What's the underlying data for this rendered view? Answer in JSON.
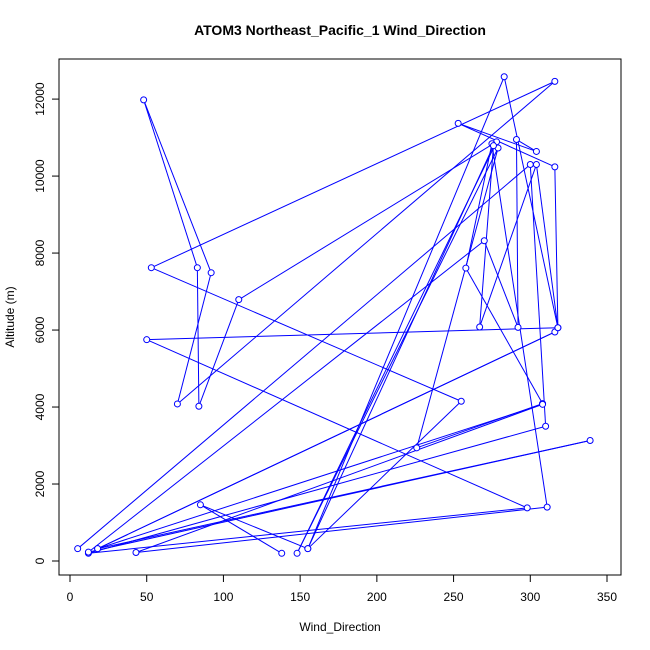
{
  "chart_data": {
    "type": "line",
    "title": "ATOM3 Northeast_Pacific_1 Wind_Direction",
    "xlabel": "Wind_Direction",
    "ylabel": "Altitude (m)",
    "xlim": [
      0,
      350
    ],
    "ylim": [
      0,
      12600
    ],
    "x_ticks": [
      0,
      50,
      100,
      150,
      200,
      250,
      300,
      350
    ],
    "y_ticks": [
      0,
      2000,
      4000,
      6000,
      8000,
      10000,
      12000
    ],
    "series_color": "#0000ff",
    "grid": false,
    "series": [
      {
        "points": [
          [
            5,
            320
          ],
          [
            300,
            10300
          ],
          [
            310,
            3500
          ],
          [
            12,
            200
          ],
          [
            298,
            1380
          ],
          [
            50,
            5750
          ],
          [
            318,
            6060
          ],
          [
            283,
            12580
          ],
          [
            155,
            320
          ],
          [
            255,
            4150
          ],
          [
            53,
            7620
          ],
          [
            316,
            12460
          ],
          [
            70,
            4080
          ],
          [
            92,
            7490
          ],
          [
            48,
            11980
          ],
          [
            83,
            7620
          ],
          [
            84,
            4020
          ],
          [
            110,
            6790
          ],
          [
            278,
            10890
          ],
          [
            148,
            200
          ],
          [
            279,
            10730
          ],
          [
            226,
            2940
          ],
          [
            308,
            4090
          ],
          [
            258,
            7610
          ],
          [
            275,
            10840
          ],
          [
            311,
            1400
          ],
          [
            43,
            220
          ],
          [
            308,
            4070
          ],
          [
            18,
            320
          ],
          [
            316,
            5950
          ],
          [
            18,
            320
          ],
          [
            339,
            3130
          ],
          [
            12,
            230
          ],
          [
            270,
            8320
          ],
          [
            292,
            6070
          ],
          [
            291,
            10950
          ],
          [
            304,
            10640
          ],
          [
            253,
            11370
          ],
          [
            316,
            10240
          ],
          [
            318,
            6060
          ],
          [
            304,
            10300
          ],
          [
            267,
            6080
          ],
          [
            276,
            10790
          ],
          [
            155,
            320
          ],
          [
            85,
            1460
          ],
          [
            138,
            200
          ]
        ]
      }
    ]
  }
}
